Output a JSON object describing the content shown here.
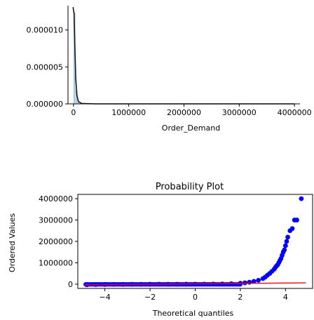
{
  "chart_data": [
    {
      "type": "histogram",
      "title": "",
      "xlabel": "Order_Demand",
      "ylabel": "",
      "xlim": [
        -100000,
        4100000
      ],
      "ylim": [
        0,
        1.33e-05
      ],
      "x_ticks": [
        0,
        1000000,
        2000000,
        3000000,
        4000000
      ],
      "x_tick_labels": [
        "0",
        "1000000",
        "2000000",
        "3000000",
        "4000000"
      ],
      "y_ticks": [
        0,
        5e-06,
        1e-05
      ],
      "y_tick_labels": [
        "0.000000",
        "0.000005",
        "0.000010"
      ],
      "bars": [
        {
          "x0": 0,
          "x1": 40000,
          "y": 1.24e-05
        },
        {
          "x0": 40000,
          "x1": 80000,
          "y": 1.8e-06
        },
        {
          "x0": 80000,
          "x1": 120000,
          "y": 3e-07
        }
      ],
      "kde": [
        {
          "x": -8000,
          "y": 1.31e-05
        },
        {
          "x": 10000,
          "y": 1.22e-05
        },
        {
          "x": 25000,
          "y": 7.8e-06
        },
        {
          "x": 40000,
          "y": 3.6e-06
        },
        {
          "x": 60000,
          "y": 1.2e-06
        },
        {
          "x": 90000,
          "y": 3e-07
        },
        {
          "x": 150000,
          "y": 5e-08
        },
        {
          "x": 400000,
          "y": 0
        },
        {
          "x": 4000000,
          "y": 0
        }
      ],
      "bar_color": "#a6c8e0",
      "kde_color": "#1a1a1a"
    },
    {
      "type": "scatter",
      "title": "Probability Plot",
      "xlabel": "Theoretical quantiles",
      "ylabel": "Ordered Values",
      "xlim": [
        -5.2,
        5.2
      ],
      "ylim": [
        -200000,
        4200000
      ],
      "x_ticks": [
        -4,
        -2,
        0,
        2,
        4
      ],
      "x_tick_labels": [
        "−4",
        "−2",
        "0",
        "2",
        "4"
      ],
      "y_ticks": [
        0,
        1000000,
        2000000,
        3000000,
        4000000
      ],
      "y_tick_labels": [
        "0",
        "1000000",
        "2000000",
        "3000000",
        "4000000"
      ],
      "points": [
        {
          "x": -4.8,
          "y": -30000
        },
        {
          "x": -4.4,
          "y": -20000
        },
        {
          "x": -4.0,
          "y": -15000
        },
        {
          "x": -3.6,
          "y": -12000
        },
        {
          "x": -3.2,
          "y": -10000
        },
        {
          "x": -2.8,
          "y": -8000
        },
        {
          "x": -2.4,
          "y": -6000
        },
        {
          "x": -2.0,
          "y": -5000
        },
        {
          "x": -1.6,
          "y": -4000
        },
        {
          "x": -1.2,
          "y": -3000
        },
        {
          "x": -0.8,
          "y": -2000
        },
        {
          "x": -0.4,
          "y": -1000
        },
        {
          "x": 0.0,
          "y": 0
        },
        {
          "x": 0.4,
          "y": 2000
        },
        {
          "x": 0.8,
          "y": 5000
        },
        {
          "x": 1.2,
          "y": 10000
        },
        {
          "x": 1.6,
          "y": 20000
        },
        {
          "x": 2.0,
          "y": 40000
        },
        {
          "x": 2.2,
          "y": 60000
        },
        {
          "x": 2.4,
          "y": 90000
        },
        {
          "x": 2.6,
          "y": 130000
        },
        {
          "x": 2.8,
          "y": 180000
        },
        {
          "x": 3.0,
          "y": 260000
        },
        {
          "x": 3.1,
          "y": 330000
        },
        {
          "x": 3.2,
          "y": 420000
        },
        {
          "x": 3.3,
          "y": 500000
        },
        {
          "x": 3.4,
          "y": 600000
        },
        {
          "x": 3.5,
          "y": 700000
        },
        {
          "x": 3.55,
          "y": 780000
        },
        {
          "x": 3.6,
          "y": 850000
        },
        {
          "x": 3.65,
          "y": 900000
        },
        {
          "x": 3.7,
          "y": 1000000
        },
        {
          "x": 3.75,
          "y": 1100000
        },
        {
          "x": 3.8,
          "y": 1200000
        },
        {
          "x": 3.85,
          "y": 1350000
        },
        {
          "x": 3.9,
          "y": 1500000
        },
        {
          "x": 3.95,
          "y": 1600000
        },
        {
          "x": 4.0,
          "y": 1800000
        },
        {
          "x": 4.05,
          "y": 2000000
        },
        {
          "x": 4.1,
          "y": 2200000
        },
        {
          "x": 4.2,
          "y": 2500000
        },
        {
          "x": 4.3,
          "y": 2600000
        },
        {
          "x": 4.4,
          "y": 3000000
        },
        {
          "x": 4.5,
          "y": 3000000
        },
        {
          "x": 4.7,
          "y": 4000000
        }
      ],
      "fit_line": {
        "x0": -4.9,
        "y0": -30000,
        "x1": 4.9,
        "y1": 60000
      },
      "point_color": "#0000ff",
      "line_color": "#ff0000"
    }
  ]
}
